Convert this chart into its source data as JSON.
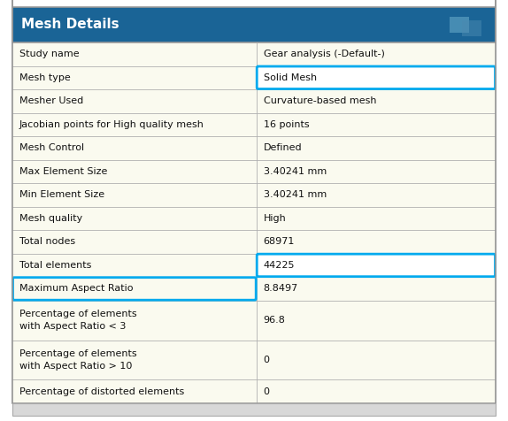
{
  "title": "Mesh Details",
  "header_bg": "#1a6496",
  "header_text_color": "#ffffff",
  "table_bg": "#fafaef",
  "cell_border_color": "#b0b0b0",
  "highlight_color": "#00aaee",
  "outer_bg": "#ffffff",
  "rows": [
    {
      "label": "Study name",
      "value": "Gear analysis (-Default-)"
    },
    {
      "label": "Mesh type",
      "value": "Solid Mesh",
      "highlight_value": true
    },
    {
      "label": "Mesher Used",
      "value": "Curvature-based mesh"
    },
    {
      "label": "Jacobian points for High quality mesh",
      "value": "16 points"
    },
    {
      "label": "Mesh Control",
      "value": "Defined"
    },
    {
      "label": "Max Element Size",
      "value": "3.40241 mm"
    },
    {
      "label": "Min Element Size",
      "value": "3.40241 mm"
    },
    {
      "label": "Mesh quality",
      "value": "High"
    },
    {
      "label": "Total nodes",
      "value": "68971"
    },
    {
      "label": "Total elements",
      "value": "44225",
      "highlight_value": true
    },
    {
      "label": "Maximum Aspect Ratio",
      "value": "8.8497",
      "highlight_label": true
    },
    {
      "label": "Percentage of elements\nwith Aspect Ratio < 3",
      "value": "96.8",
      "multiline": true
    },
    {
      "label": "Percentage of elements\nwith Aspect Ratio > 10",
      "value": "0",
      "multiline": true
    },
    {
      "label": "Percentage of distorted elements",
      "value": "0"
    }
  ],
  "fig_width": 5.74,
  "fig_height": 4.76,
  "dpi": 100
}
